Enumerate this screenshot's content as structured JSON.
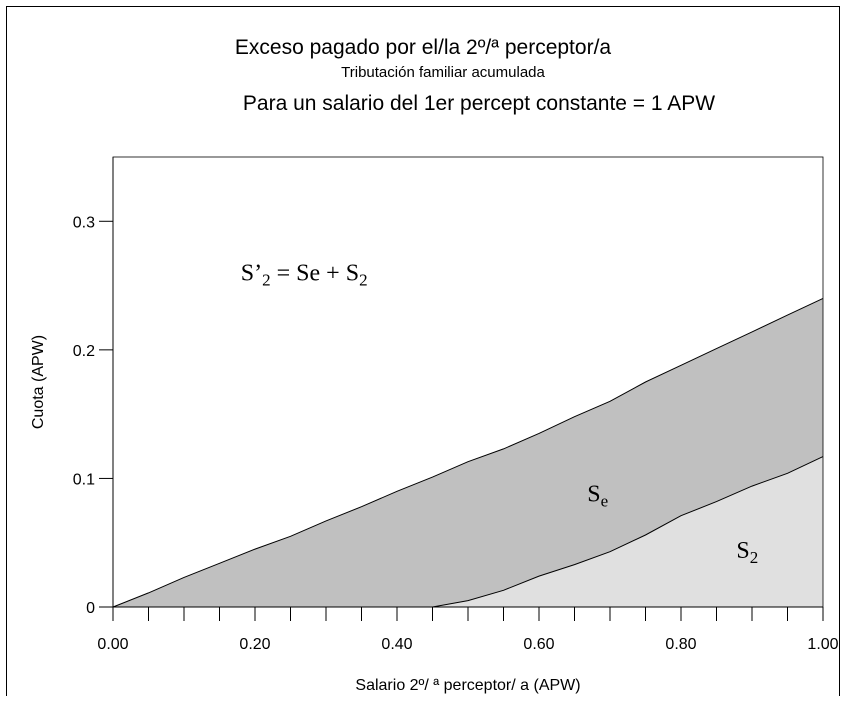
{
  "chart_data": {
    "type": "area",
    "title": "Exceso pagado por el/la 2º/ª perceptor/a",
    "subtitle": "Tributación familiar acumulada",
    "subtitle2": "Para un salario del 1er percept constante = 1 APW",
    "xlabel": "Salario 2º/ ª perceptor/ a (APW)",
    "ylabel": "Cuota (APW)",
    "xlim": [
      0,
      1
    ],
    "ylim": [
      0,
      0.35
    ],
    "x_ticks": [
      "0.00",
      "0.20",
      "0.40",
      "0.60",
      "0.80",
      "1.00"
    ],
    "x_tick_values": [
      0,
      0.2,
      0.4,
      0.6,
      0.8,
      1.0
    ],
    "x_minor_step": 0.05,
    "y_ticks": [
      "0",
      "0.1",
      "0.2",
      "0.3"
    ],
    "y_tick_values": [
      0,
      0.1,
      0.2,
      0.3
    ],
    "x": [
      0,
      0.05,
      0.1,
      0.15,
      0.2,
      0.25,
      0.3,
      0.35,
      0.4,
      0.45,
      0.5,
      0.55,
      0.6,
      0.65,
      0.7,
      0.75,
      0.8,
      0.85,
      0.9,
      0.95,
      1.0
    ],
    "series": [
      {
        "name": "S'2 = Se + S2",
        "values": [
          0,
          0.011,
          0.023,
          0.034,
          0.045,
          0.055,
          0.067,
          0.078,
          0.09,
          0.101,
          0.113,
          0.123,
          0.135,
          0.148,
          0.16,
          0.175,
          0.188,
          0.201,
          0.214,
          0.227,
          0.24
        ],
        "fill": "#c0c0c0"
      },
      {
        "name": "S2",
        "values": [
          0,
          0,
          0,
          0,
          0,
          0,
          0,
          0,
          0,
          0,
          0.005,
          0.013,
          0.024,
          0.033,
          0.043,
          0.056,
          0.071,
          0.082,
          0.094,
          0.104,
          0.117
        ],
        "fill": "#e0e0e0"
      }
    ],
    "annotations": [
      {
        "id": "formula",
        "text_main": "S’",
        "sub1": "2",
        "text_mid": " = Se + S",
        "sub2": "2",
        "x": 0.18,
        "y": 0.254
      },
      {
        "id": "se",
        "text_main": "S",
        "sub": "e",
        "x": 0.668,
        "y": 0.082
      },
      {
        "id": "s2",
        "text_main": "S",
        "sub": "2",
        "x": 0.878,
        "y": 0.038
      }
    ],
    "grid": false
  }
}
